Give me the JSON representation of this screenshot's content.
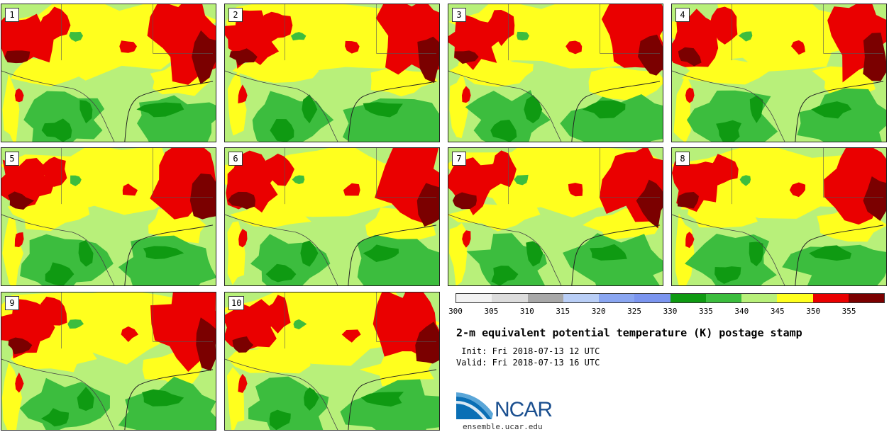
{
  "stamps": [
    {
      "label": "1"
    },
    {
      "label": "2"
    },
    {
      "label": "3"
    },
    {
      "label": "4"
    },
    {
      "label": "5"
    },
    {
      "label": "6"
    },
    {
      "label": "7"
    },
    {
      "label": "8"
    },
    {
      "label": "9"
    },
    {
      "label": "10"
    }
  ],
  "colorbar": {
    "ticks": [
      "300",
      "305",
      "310",
      "315",
      "320",
      "325",
      "330",
      "335",
      "340",
      "345",
      "350",
      "355"
    ],
    "colors": [
      "#f2f2f2",
      "#dcdcdc",
      "#a8a8a8",
      "#b9cef6",
      "#8aa6f1",
      "#7b95ef",
      "#0f9a12",
      "#3cbd3e",
      "#b8f07a",
      "#ffff1e",
      "#ea0000",
      "#7b0000"
    ]
  },
  "title": "2-m equivalent potential temperature (K) postage stamp",
  "init": " Init: Fri 2018-07-13 12 UTC",
  "valid": "Valid: Fri 2018-07-13 16 UTC",
  "logo": {
    "text": "NCAR",
    "url": "ensemble.ucar.edu"
  }
}
